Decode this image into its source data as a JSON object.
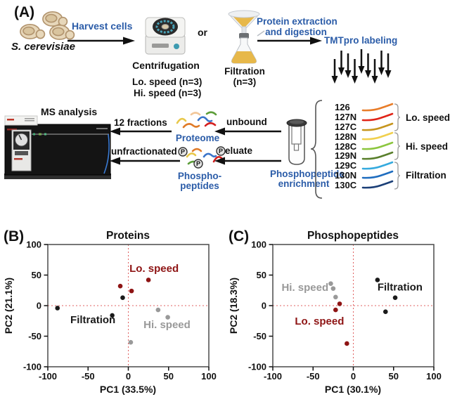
{
  "colors": {
    "accent_blue": "#2b5ca8",
    "lo_speed_red": "#8e1414",
    "hi_speed_gray": "#999999",
    "filtration_black": "#1a1a1a",
    "crosshair_red": "#e06060"
  },
  "panel_a": {
    "label": "(A)",
    "organism": "S. cerevisiae",
    "harvest_cells": "Harvest cells",
    "or": "or",
    "centrifugation": {
      "title": "Centrifugation",
      "lo": "Lo. speed (n=3)",
      "hi": "Hi. speed (n=3)"
    },
    "filtration": {
      "title": "Filtration",
      "n": "(n=3)"
    },
    "extraction": {
      "line1": "Protein extraction",
      "line2": "and digestion"
    },
    "tmt_labeling": "TMTpro labeling",
    "ms_analysis": "MS analysis",
    "fractions": "12 fractions",
    "unfractionated": "unfractionated",
    "unbound": "unbound",
    "eluate": "eluate",
    "proteome": "Proteome",
    "phosphopeptides": {
      "line1": "Phospho-",
      "line2": "peptides"
    },
    "enrichment": {
      "line1": "Phosphopeptide",
      "line2": "enrichment"
    },
    "channels": [
      {
        "id": "126",
        "color": "#e87d2a"
      },
      {
        "id": "127N",
        "color": "#e02417"
      },
      {
        "id": "127C",
        "color": "#c6951d"
      },
      {
        "id": "128N",
        "color": "#f0d04e"
      },
      {
        "id": "128C",
        "color": "#8cc63f"
      },
      {
        "id": "129N",
        "color": "#597f2c"
      },
      {
        "id": "129C",
        "color": "#35aade"
      },
      {
        "id": "130N",
        "color": "#1f6dbf"
      },
      {
        "id": "130C",
        "color": "#1b3f77"
      }
    ],
    "groups": [
      {
        "label": "Lo. speed"
      },
      {
        "label": "Hi. speed"
      },
      {
        "label": "Filtration"
      }
    ]
  },
  "chart_data": [
    {
      "type": "scatter",
      "panel": "(B)",
      "title": "Proteins",
      "xlabel": "PC1 (33.5%)",
      "ylabel": "PC2 (21.1%)",
      "xlim": [
        -100,
        100
      ],
      "ylim": [
        -100,
        100
      ],
      "xticks": [
        -100,
        -50,
        0,
        50,
        100
      ],
      "yticks": [
        -100,
        -50,
        0,
        50,
        100
      ],
      "grid": false,
      "crosshair_at_zero": true,
      "series": [
        {
          "name": "Lo. speed",
          "color": "#8e1414",
          "points": [
            [
              -10,
              32
            ],
            [
              4,
              24
            ],
            [
              25,
              42
            ]
          ],
          "label_pos": [
            32,
            55
          ]
        },
        {
          "name": "Hi. speed",
          "color": "#999999",
          "points": [
            [
              37,
              -7
            ],
            [
              49,
              -19
            ],
            [
              3,
              -60
            ]
          ],
          "label_pos": [
            48,
            -37
          ]
        },
        {
          "name": "Filtration",
          "color": "#1a1a1a",
          "points": [
            [
              -88,
              -4
            ],
            [
              -20,
              -16
            ],
            [
              -7,
              13
            ]
          ],
          "label_pos": [
            -44,
            -29
          ]
        }
      ]
    },
    {
      "type": "scatter",
      "panel": "(C)",
      "title": "Phosphopeptides",
      "xlabel": "PC1 (30.1%)",
      "ylabel": "PC2 (18.3%)",
      "xlim": [
        -100,
        100
      ],
      "ylim": [
        -100,
        100
      ],
      "xticks": [
        -100,
        -50,
        0,
        50,
        100
      ],
      "yticks": [
        -100,
        -50,
        0,
        50,
        100
      ],
      "grid": false,
      "crosshair_at_zero": true,
      "series": [
        {
          "name": "Hi. speed",
          "color": "#999999",
          "points": [
            [
              -28,
              36
            ],
            [
              -25,
              28
            ],
            [
              -22,
              14
            ]
          ],
          "label_pos": [
            -60,
            24
          ]
        },
        {
          "name": "Lo. speed",
          "color": "#8e1414",
          "points": [
            [
              -17,
              3
            ],
            [
              -22,
              -7
            ],
            [
              -8,
              -62
            ]
          ],
          "label_pos": [
            -42,
            -31
          ]
        },
        {
          "name": "Filtration",
          "color": "#1a1a1a",
          "points": [
            [
              30,
              42
            ],
            [
              52,
              13
            ],
            [
              40,
              -10
            ]
          ],
          "label_pos": [
            58,
            25
          ]
        }
      ]
    }
  ]
}
